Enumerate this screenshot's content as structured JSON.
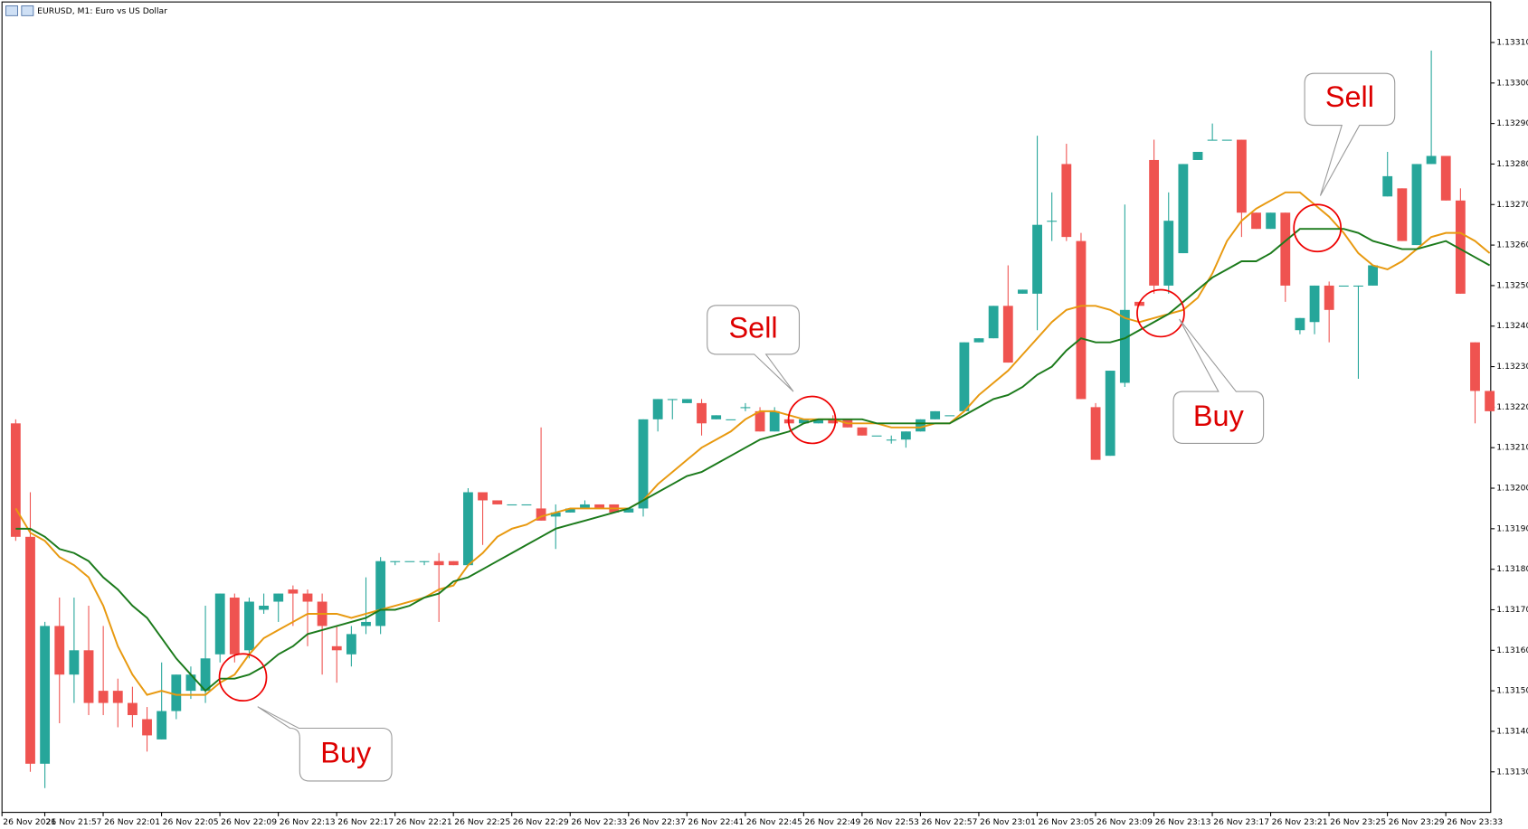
{
  "chart_data": {
    "type": "candlestick",
    "title": "EURUSD, M1:  Euro vs US Dollar",
    "up_color": "#26a69a",
    "down_color": "#ef5350",
    "open": [
      1.13216,
      1.13188,
      1.13132,
      1.13166,
      1.13154,
      1.1316,
      1.1315,
      1.1315,
      1.13147,
      1.13143,
      1.13138,
      1.13145,
      1.1315,
      1.1315,
      1.13159,
      1.13173,
      1.1316,
      1.1317,
      1.13172,
      1.13175,
      1.13174,
      1.13172,
      1.13161,
      1.13159,
      1.13166,
      1.13166,
      1.13182,
      1.13182,
      1.13182,
      1.13182,
      1.13182,
      1.13181,
      1.13199,
      1.13197,
      1.13196,
      1.13196,
      1.13195,
      1.13193,
      1.13194,
      1.13195,
      1.13196,
      1.13196,
      1.13194,
      1.13195,
      1.13217,
      1.13222,
      1.13221,
      1.13221,
      1.13217,
      1.13217,
      1.1322,
      1.13219,
      1.13214,
      1.13217,
      1.13216,
      1.13216,
      1.13217,
      1.13217,
      1.13215,
      1.13213,
      1.13212,
      1.13212,
      1.13214,
      1.13217,
      1.13218,
      1.13219,
      1.13236,
      1.13237,
      1.13245,
      1.13248,
      1.13248,
      1.13266,
      1.1328,
      1.13261,
      1.1322,
      1.13208,
      1.13226,
      1.13246,
      1.13281,
      1.1325,
      1.13258,
      1.13281,
      1.13286,
      1.13286,
      1.13286,
      1.13268,
      1.13264,
      1.13268,
      1.13239,
      1.13241,
      1.1325,
      1.1325,
      1.1325,
      1.1325,
      1.13272,
      1.13274,
      1.1326,
      1.1328,
      1.13282,
      1.13271,
      1.13236,
      1.13224
    ],
    "high": [
      1.13217,
      1.13199,
      1.13167,
      1.13173,
      1.13173,
      1.13171,
      1.13166,
      1.13153,
      1.13151,
      1.13146,
      1.13157,
      1.13154,
      1.13156,
      1.13171,
      1.13174,
      1.13174,
      1.13173,
      1.13174,
      1.13174,
      1.13176,
      1.13175,
      1.13174,
      1.13166,
      1.13166,
      1.13178,
      1.13183,
      1.13182,
      1.13182,
      1.13182,
      1.13184,
      1.13182,
      1.132,
      1.13199,
      1.13197,
      1.13196,
      1.13196,
      1.13215,
      1.13196,
      1.13195,
      1.13197,
      1.13196,
      1.13196,
      1.13195,
      1.13217,
      1.13222,
      1.13222,
      1.13222,
      1.13222,
      1.13218,
      1.13217,
      1.13221,
      1.1322,
      1.1322,
      1.13217,
      1.13217,
      1.13217,
      1.13218,
      1.13217,
      1.13215,
      1.13213,
      1.13213,
      1.13214,
      1.13217,
      1.13219,
      1.13218,
      1.13236,
      1.13237,
      1.13245,
      1.13255,
      1.13249,
      1.13287,
      1.13273,
      1.13285,
      1.13263,
      1.13221,
      1.13229,
      1.1327,
      1.13246,
      1.13286,
      1.13273,
      1.1328,
      1.13283,
      1.1329,
      1.13286,
      1.13286,
      1.13268,
      1.13268,
      1.13268,
      1.13242,
      1.1325,
      1.13251,
      1.1325,
      1.1325,
      1.13255,
      1.13283,
      1.13274,
      1.1328,
      1.13308,
      1.13282,
      1.13274,
      1.13236,
      1.13224
    ],
    "low": [
      1.13187,
      1.1313,
      1.13126,
      1.13142,
      1.13147,
      1.13144,
      1.13144,
      1.13141,
      1.13141,
      1.13135,
      1.13138,
      1.13143,
      1.13148,
      1.13147,
      1.13157,
      1.13157,
      1.13158,
      1.13169,
      1.13167,
      1.13166,
      1.13161,
      1.13154,
      1.13152,
      1.13156,
      1.13164,
      1.13164,
      1.13181,
      1.13182,
      1.13181,
      1.13167,
      1.13181,
      1.13181,
      1.13186,
      1.13196,
      1.13196,
      1.13196,
      1.13192,
      1.13185,
      1.13194,
      1.13195,
      1.13195,
      1.13194,
      1.13194,
      1.13193,
      1.13214,
      1.13217,
      1.13221,
      1.13213,
      1.13217,
      1.13217,
      1.13219,
      1.13214,
      1.13214,
      1.13216,
      1.13216,
      1.13216,
      1.13216,
      1.13215,
      1.13213,
      1.13213,
      1.13211,
      1.1321,
      1.13214,
      1.13217,
      1.13218,
      1.13219,
      1.13236,
      1.13237,
      1.13231,
      1.13248,
      1.13239,
      1.13261,
      1.13261,
      1.13222,
      1.13207,
      1.13208,
      1.13225,
      1.13245,
      1.13248,
      1.13248,
      1.13258,
      1.13281,
      1.13286,
      1.13286,
      1.13262,
      1.13264,
      1.13264,
      1.13246,
      1.13238,
      1.13238,
      1.13236,
      1.1325,
      1.13227,
      1.1325,
      1.13272,
      1.13261,
      1.1326,
      1.1328,
      1.13271,
      1.13248,
      1.13216,
      1.13219
    ],
    "close": [
      1.13188,
      1.13132,
      1.13166,
      1.13154,
      1.1316,
      1.13147,
      1.13147,
      1.13147,
      1.13144,
      1.13139,
      1.13145,
      1.13154,
      1.13154,
      1.13158,
      1.13174,
      1.13159,
      1.13172,
      1.13171,
      1.13174,
      1.13174,
      1.13172,
      1.13166,
      1.1316,
      1.13164,
      1.13167,
      1.13182,
      1.13182,
      1.13182,
      1.13182,
      1.13181,
      1.13181,
      1.13199,
      1.13197,
      1.13196,
      1.13196,
      1.13196,
      1.13192,
      1.13194,
      1.13195,
      1.13196,
      1.13195,
      1.13194,
      1.13195,
      1.13217,
      1.13222,
      1.13222,
      1.13222,
      1.13216,
      1.13218,
      1.13217,
      1.1322,
      1.13214,
      1.13219,
      1.13216,
      1.13217,
      1.13217,
      1.13216,
      1.13215,
      1.13213,
      1.13213,
      1.13212,
      1.13214,
      1.13217,
      1.13219,
      1.13218,
      1.13236,
      1.13237,
      1.13245,
      1.13231,
      1.13249,
      1.13265,
      1.13266,
      1.13262,
      1.13222,
      1.13207,
      1.13229,
      1.13244,
      1.13245,
      1.1325,
      1.13266,
      1.1328,
      1.13283,
      1.13286,
      1.13286,
      1.13268,
      1.13264,
      1.13268,
      1.1325,
      1.13242,
      1.1325,
      1.13244,
      1.1325,
      1.1325,
      1.13255,
      1.13277,
      1.13261,
      1.1328,
      1.13282,
      1.13271,
      1.13248,
      1.13224,
      1.13219
    ],
    "series": [
      {
        "color": "#e8990f",
        "values": [
          1.13195,
          1.13189,
          1.13187,
          1.13183,
          1.13181,
          1.13178,
          1.13171,
          1.13161,
          1.13154,
          1.13149,
          1.1315,
          1.13149,
          1.13149,
          1.13149,
          1.13152,
          1.13154,
          1.13159,
          1.13163,
          1.13165,
          1.13167,
          1.13169,
          1.13169,
          1.13169,
          1.13168,
          1.13169,
          1.1317,
          1.13171,
          1.13172,
          1.13173,
          1.13175,
          1.13176,
          1.13181,
          1.13184,
          1.13188,
          1.1319,
          1.13191,
          1.13193,
          1.13194,
          1.13195,
          1.13195,
          1.13195,
          1.13195,
          1.13195,
          1.13197,
          1.13201,
          1.13204,
          1.13207,
          1.1321,
          1.13212,
          1.13214,
          1.13217,
          1.13219,
          1.13219,
          1.13218,
          1.13217,
          1.13217,
          1.13217,
          1.13216,
          1.13216,
          1.13216,
          1.13215,
          1.13215,
          1.13215,
          1.13216,
          1.13216,
          1.13219,
          1.13223,
          1.13226,
          1.13229,
          1.13233,
          1.13237,
          1.13241,
          1.13244,
          1.13245,
          1.13245,
          1.13244,
          1.13242,
          1.13241,
          1.13242,
          1.13243,
          1.13244,
          1.13247,
          1.13253,
          1.13261,
          1.13266,
          1.13269,
          1.13271,
          1.13273,
          1.13273,
          1.1327,
          1.13267,
          1.13263,
          1.13258,
          1.13255,
          1.13254,
          1.13256,
          1.13259,
          1.13262,
          1.13263,
          1.13263,
          1.13261,
          1.13258
        ]
      },
      {
        "color": "#1b7a1b",
        "values": [
          1.1319,
          1.1319,
          1.13188,
          1.13185,
          1.13184,
          1.13182,
          1.13178,
          1.13175,
          1.13171,
          1.13168,
          1.13163,
          1.13158,
          1.13154,
          1.1315,
          1.13153,
          1.13153,
          1.13154,
          1.13156,
          1.13159,
          1.13161,
          1.13164,
          1.13165,
          1.13166,
          1.13167,
          1.13168,
          1.1317,
          1.1317,
          1.13171,
          1.13173,
          1.13174,
          1.13177,
          1.13178,
          1.1318,
          1.13182,
          1.13184,
          1.13186,
          1.13188,
          1.1319,
          1.13191,
          1.13192,
          1.13193,
          1.13194,
          1.13195,
          1.13197,
          1.13199,
          1.13201,
          1.13203,
          1.13204,
          1.13206,
          1.13208,
          1.1321,
          1.13212,
          1.13213,
          1.13214,
          1.13216,
          1.13217,
          1.13217,
          1.13217,
          1.13217,
          1.13216,
          1.13216,
          1.13216,
          1.13216,
          1.13216,
          1.13216,
          1.13218,
          1.1322,
          1.13222,
          1.13223,
          1.13225,
          1.13228,
          1.1323,
          1.13234,
          1.13237,
          1.13236,
          1.13236,
          1.13237,
          1.13239,
          1.13241,
          1.13243,
          1.13246,
          1.13249,
          1.13252,
          1.13254,
          1.13256,
          1.13256,
          1.13258,
          1.13261,
          1.13264,
          1.13264,
          1.13264,
          1.13264,
          1.13263,
          1.13261,
          1.1326,
          1.13259,
          1.13259,
          1.1326,
          1.13261,
          1.13259,
          1.13257,
          1.13255
        ]
      }
    ],
    "ylim": [
      1.1312,
      1.1332
    ],
    "yticks": [
      {
        "value": 1.1313,
        "label": "1.13130"
      },
      {
        "value": 1.1314,
        "label": "1.13140"
      },
      {
        "value": 1.1315,
        "label": "1.13150"
      },
      {
        "value": 1.1316,
        "label": "1.13160"
      },
      {
        "value": 1.1317,
        "label": "1.13170"
      },
      {
        "value": 1.1318,
        "label": "1.13180"
      },
      {
        "value": 1.1319,
        "label": "1.13190"
      },
      {
        "value": 1.132,
        "label": "1.13200"
      },
      {
        "value": 1.1321,
        "label": "1.13210"
      },
      {
        "value": 1.1322,
        "label": "1.13220"
      },
      {
        "value": 1.1323,
        "label": "1.13230"
      },
      {
        "value": 1.1324,
        "label": "1.13240"
      },
      {
        "value": 1.1325,
        "label": "1.13250"
      },
      {
        "value": 1.1326,
        "label": "1.13260"
      },
      {
        "value": 1.1327,
        "label": "1.13270"
      },
      {
        "value": 1.1328,
        "label": "1.13280"
      },
      {
        "value": 1.1329,
        "label": "1.13290"
      },
      {
        "value": 1.133,
        "label": "1.13300"
      },
      {
        "value": 1.1331,
        "label": "1.13310"
      }
    ],
    "xtick_labels": [
      "26 Nov 2021",
      "26 Nov 21:57",
      "26 Nov 22:01",
      "26 Nov 22:05",
      "26 Nov 22:09",
      "26 Nov 22:13",
      "26 Nov 22:17",
      "26 Nov 22:21",
      "26 Nov 22:25",
      "26 Nov 22:29",
      "26 Nov 22:33",
      "26 Nov 22:37",
      "26 Nov 22:41",
      "26 Nov 22:45",
      "26 Nov 22:49",
      "26 Nov 22:53",
      "26 Nov 22:57",
      "26 Nov 23:01",
      "26 Nov 23:05",
      "26 Nov 23:09",
      "26 Nov 23:13",
      "26 Nov 23:17",
      "26 Nov 23:21",
      "26 Nov 23:25",
      "26 Nov 23:29",
      "26 Nov 23:33"
    ],
    "annotations": [
      "Buy",
      "Sell",
      "Buy",
      "Sell"
    ]
  }
}
